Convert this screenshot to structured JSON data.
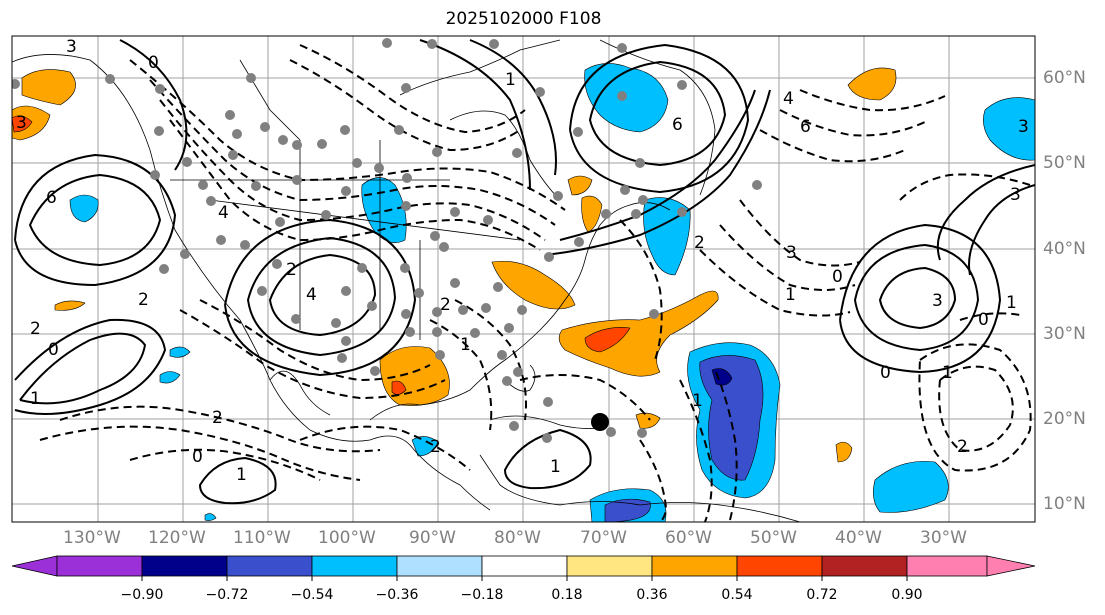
{
  "title": "2025102000 F108",
  "lat_labels": [
    "60°N",
    "50°N",
    "40°N",
    "30°N",
    "20°N",
    "10°N"
  ],
  "lon_labels": [
    "130°W",
    "120°W",
    "110°W",
    "100°W",
    "90°W",
    "80°W",
    "70°W",
    "60°W",
    "50°W",
    "40°W",
    "30°W"
  ],
  "colorbar": {
    "colors": [
      "#9b30d9",
      "#00008b",
      "#3a4fcc",
      "#00bfff",
      "#b0e0ff",
      "#ffffff",
      "#ffe680",
      "#ffa500",
      "#ff4500",
      "#b22222",
      "#ff7fb0"
    ],
    "ticks": [
      "−0.90",
      "−0.72",
      "−0.54",
      "−0.36",
      "−0.18",
      "0.18",
      "0.36",
      "0.54",
      "0.72",
      "0.90"
    ]
  },
  "contour_labels": {
    "c1": "6",
    "c2": "3",
    "c3": "4",
    "c4": "2",
    "c5": "6",
    "c6": "4",
    "c7": "3",
    "c8": "0",
    "c9": "3",
    "c10": "2",
    "c11": "1",
    "c12": "1",
    "c13": "2",
    "c14": "0",
    "c15": "1",
    "c16": "2",
    "c17": "1",
    "c18": "3",
    "c19": "2",
    "c20": "0",
    "c21": "1",
    "c22": "2",
    "c23": "1",
    "c24": "0",
    "c25": "3"
  }
}
